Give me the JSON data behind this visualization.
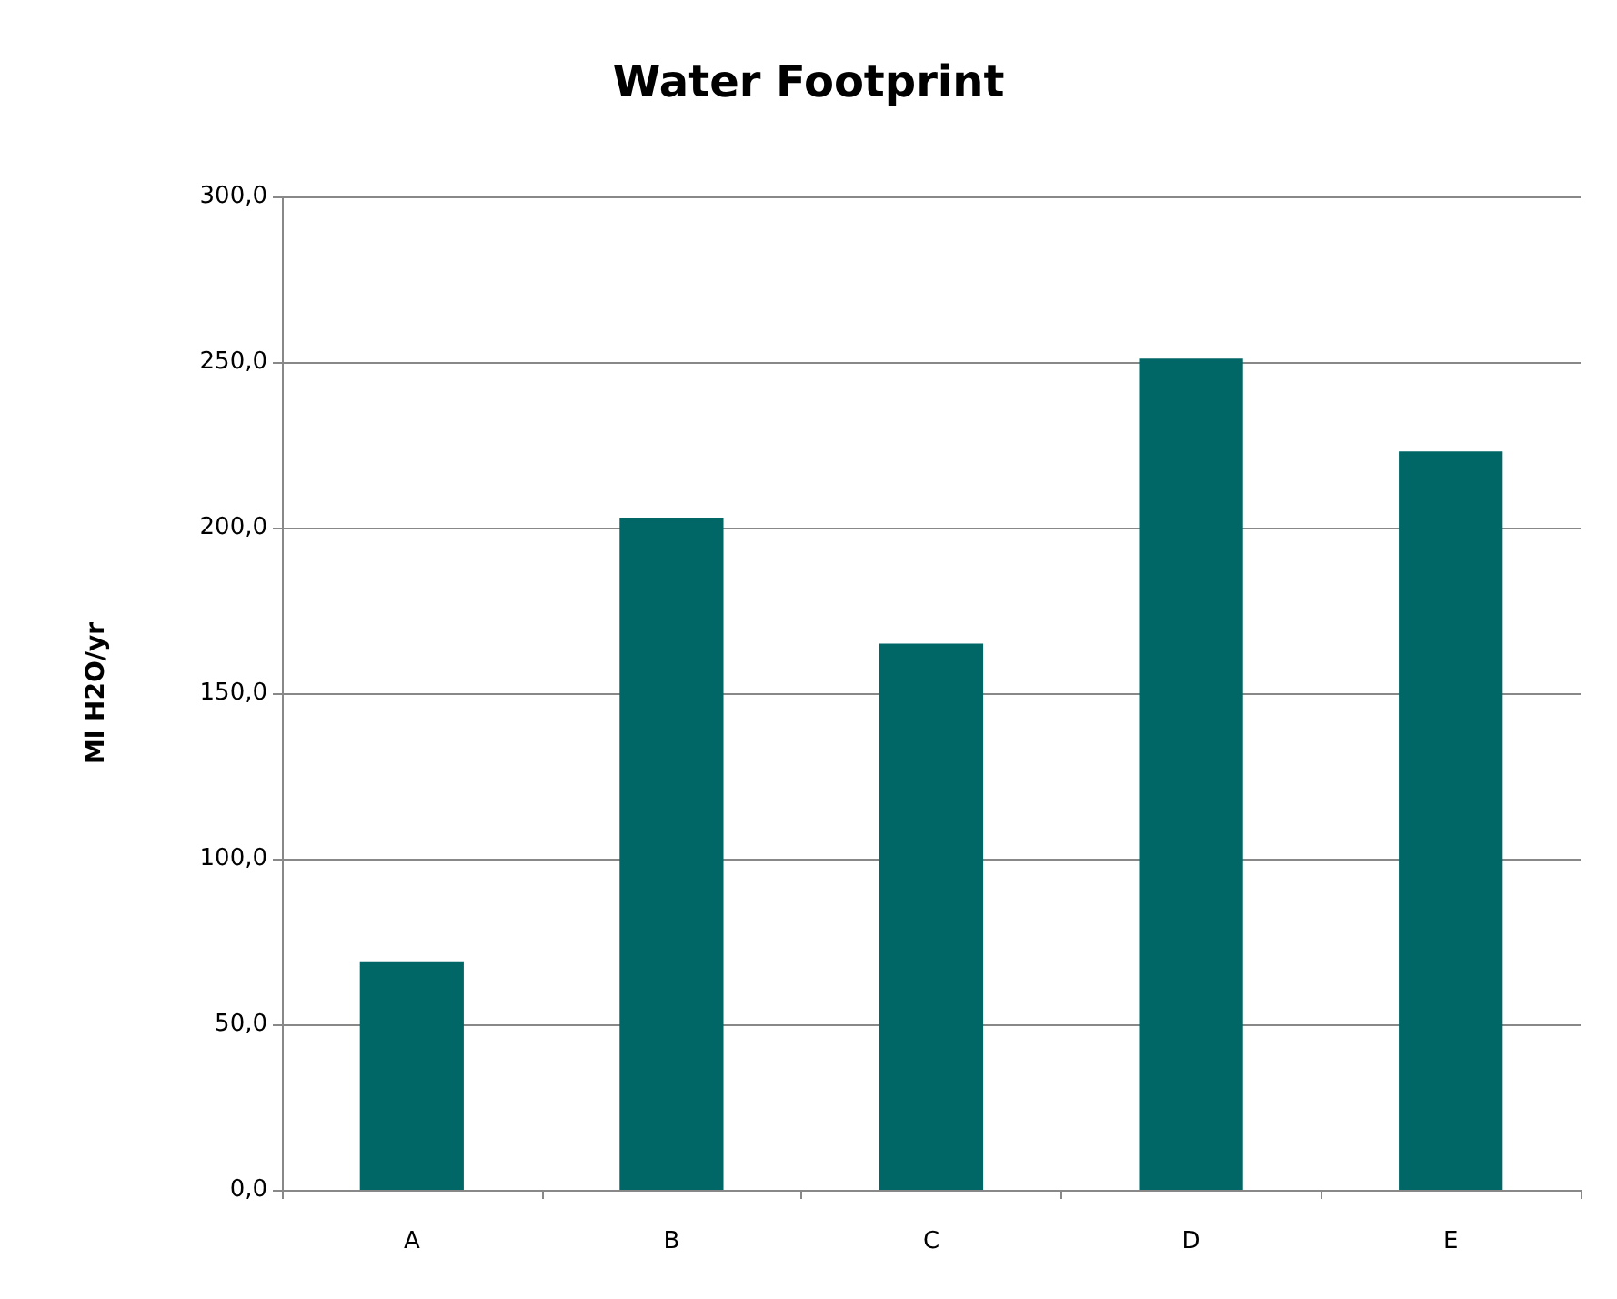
{
  "chart_data": {
    "type": "bar",
    "title": "Water Footprint",
    "ylabel": "Ml H2O/yr",
    "categories": [
      "A",
      "B",
      "C",
      "D",
      "E"
    ],
    "values": [
      69,
      203,
      165,
      251,
      223
    ],
    "color": "#006666",
    "ylim": [
      0,
      300
    ],
    "yticks": [
      {
        "value": 0,
        "label": "0,0"
      },
      {
        "value": 50,
        "label": "50,0"
      },
      {
        "value": 100,
        "label": "100,0"
      },
      {
        "value": 150,
        "label": "150,0"
      },
      {
        "value": 200,
        "label": "200,0"
      },
      {
        "value": 250,
        "label": "250,0"
      },
      {
        "value": 300,
        "label": "300,0"
      }
    ],
    "grid": "y"
  }
}
